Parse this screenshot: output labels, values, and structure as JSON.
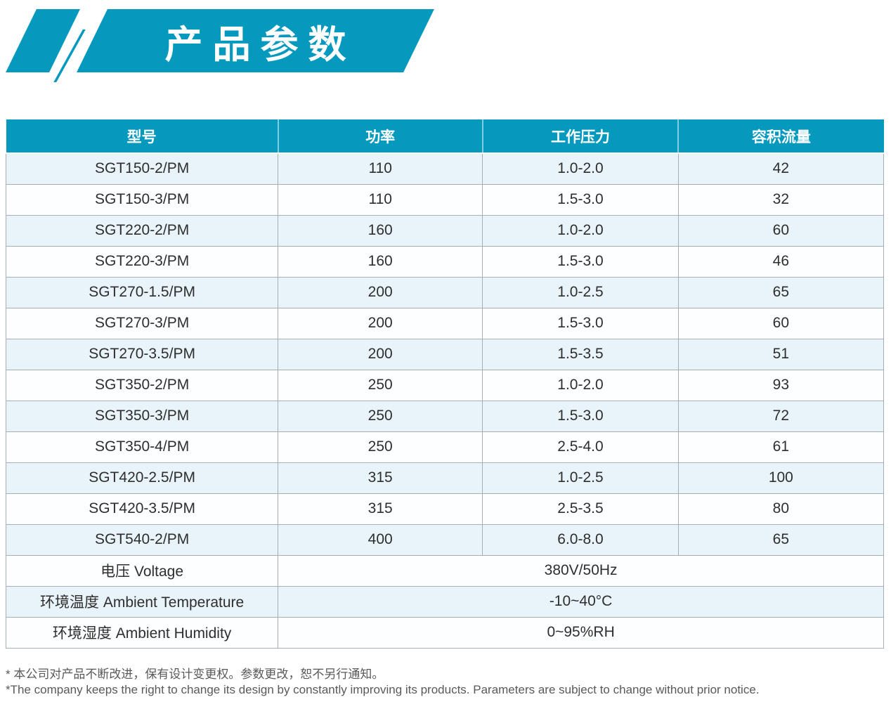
{
  "banner": {
    "title": "产品参数"
  },
  "table": {
    "columns": [
      "型号",
      "功率",
      "工作压力",
      "容积流量"
    ],
    "rows": [
      [
        "SGT150-2/PM",
        "110",
        "1.0-2.0",
        "42"
      ],
      [
        "SGT150-3/PM",
        "110",
        "1.5-3.0",
        "32"
      ],
      [
        "SGT220-2/PM",
        "160",
        "1.0-2.0",
        "60"
      ],
      [
        "SGT220-3/PM",
        "160",
        "1.5-3.0",
        "46"
      ],
      [
        "SGT270-1.5/PM",
        "200",
        "1.0-2.5",
        "65"
      ],
      [
        "SGT270-3/PM",
        "200",
        "1.5-3.0",
        "60"
      ],
      [
        "SGT270-3.5/PM",
        "200",
        "1.5-3.5",
        "51"
      ],
      [
        "SGT350-2/PM",
        "250",
        "1.0-2.0",
        "93"
      ],
      [
        "SGT350-3/PM",
        "250",
        "1.5-3.0",
        "72"
      ],
      [
        "SGT350-4/PM",
        "250",
        "2.5-4.0",
        "61"
      ],
      [
        "SGT420-2.5/PM",
        "315",
        "1.0-2.5",
        "100"
      ],
      [
        "SGT420-3.5/PM",
        "315",
        "2.5-3.5",
        "80"
      ],
      [
        "SGT540-2/PM",
        "400",
        "6.0-8.0",
        "65"
      ]
    ],
    "spec_rows": [
      {
        "label": "电压 Voltage",
        "value": "380V/50Hz"
      },
      {
        "label": "环境温度 Ambient Temperature",
        "value": "-10~40°C"
      },
      {
        "label": "环境湿度 Ambient Humidity",
        "value": "0~95%RH"
      }
    ]
  },
  "footnotes": {
    "zh": "* 本公司对产品不断改进，保有设计变更权。参数更改，恕不另行通知。",
    "en": "*The company keeps the right to change its design by constantly improving its products. Parameters are subject to change without prior notice."
  },
  "colors": {
    "accent": "#0699BE",
    "row_alt": "#E9F3FA",
    "border": "#A6AFB5",
    "footnote": "#595959"
  }
}
